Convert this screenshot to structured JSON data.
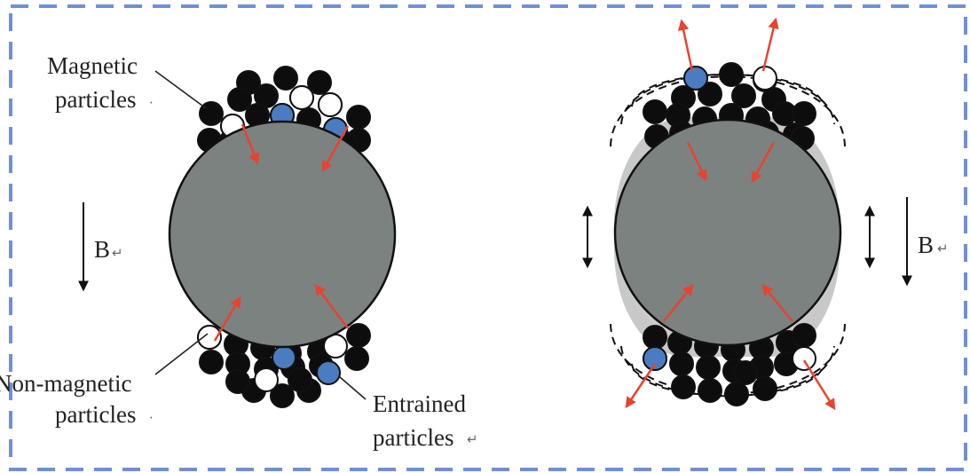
{
  "colors": {
    "frame": "#6f8fd8",
    "core": "#7b8280",
    "magnetic": "#0d0d0d",
    "entrained": "#4a7cc2",
    "non_magnetic": "#ffffff",
    "force_arrow": "#e8432e",
    "halo": "#cdcdcd"
  },
  "labels": {
    "magnetic_line1": "Magnetic",
    "magnetic_line2": "particles",
    "nonmag_line1": "Non-magnetic",
    "nonmag_line2": "particles",
    "entrained_line1": "Entrained",
    "entrained_line2": "particles",
    "field_left": "B",
    "field_right": "B"
  },
  "marks": {
    "para": "↵",
    "dot": "·"
  }
}
